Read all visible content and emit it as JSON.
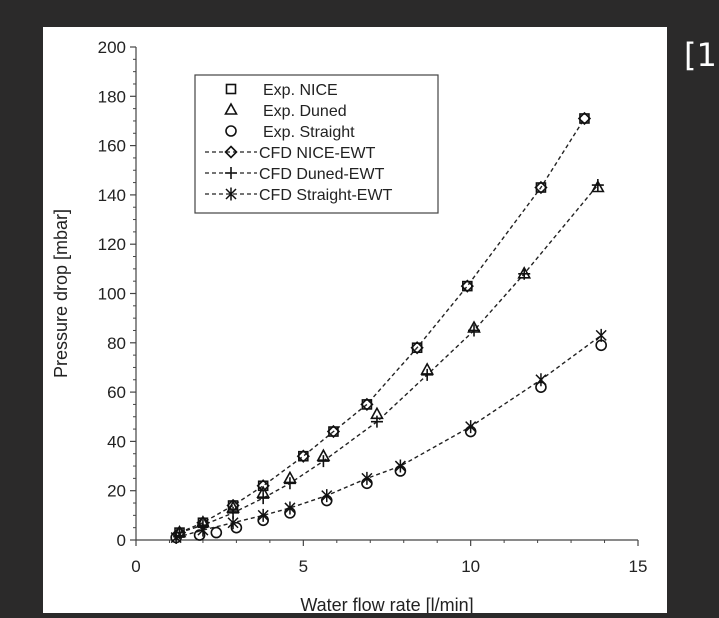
{
  "page": {
    "corner_text": "[1"
  },
  "chart_data": {
    "type": "scatter",
    "title": "",
    "xlabel": "Water flow rate [l/min]",
    "ylabel": "Pressure drop [mbar]",
    "xlim": [
      0,
      15
    ],
    "ylim": [
      0,
      200
    ],
    "xticks": [
      0,
      5,
      10,
      15
    ],
    "yticks": [
      0,
      20,
      40,
      60,
      80,
      100,
      120,
      140,
      160,
      180,
      200
    ],
    "grid": false,
    "legend_position": "top-left",
    "series": [
      {
        "name": "Exp. NICE",
        "marker": "square",
        "line": false,
        "x": [
          1.3,
          2.0,
          2.9,
          3.8,
          5.0,
          5.9,
          6.9,
          8.4,
          9.9,
          12.1,
          13.4
        ],
        "y": [
          3,
          7,
          14,
          22,
          34,
          44,
          55,
          78,
          103,
          143,
          171
        ]
      },
      {
        "name": "Exp. Duned",
        "marker": "triangle",
        "line": false,
        "x": [
          1.3,
          2.0,
          2.9,
          3.8,
          4.6,
          5.6,
          7.2,
          8.7,
          10.1,
          11.6,
          13.8
        ],
        "y": [
          3,
          7,
          13,
          19,
          25,
          34,
          51,
          69,
          86,
          108,
          143
        ]
      },
      {
        "name": "Exp. Straight",
        "marker": "circle",
        "line": false,
        "x": [
          1.2,
          1.9,
          2.4,
          3.0,
          3.8,
          4.6,
          5.7,
          6.9,
          7.9,
          10.0,
          12.1,
          13.9
        ],
        "y": [
          1,
          2,
          3,
          5,
          8,
          11,
          16,
          23,
          28,
          44,
          62,
          79
        ]
      },
      {
        "name": "CFD NICE-EWT",
        "marker": "diamond",
        "line": true,
        "x": [
          1.3,
          2.0,
          2.9,
          3.8,
          5.0,
          5.9,
          6.9,
          8.4,
          9.9,
          12.1,
          13.4
        ],
        "y": [
          3,
          7,
          14,
          22,
          34,
          44,
          55,
          78,
          103,
          143,
          171
        ]
      },
      {
        "name": "CFD Duned-EWT",
        "marker": "plus",
        "line": true,
        "x": [
          1.3,
          2.0,
          2.9,
          3.8,
          4.6,
          5.6,
          7.2,
          8.7,
          10.1,
          11.6,
          13.8
        ],
        "y": [
          3,
          6,
          11,
          17,
          23,
          32,
          48,
          67,
          85,
          108,
          144
        ]
      },
      {
        "name": "CFD Straight-EWT",
        "marker": "star",
        "line": true,
        "x": [
          1.2,
          2.0,
          2.9,
          3.8,
          4.6,
          5.7,
          6.9,
          7.9,
          10.0,
          12.1,
          13.9
        ],
        "y": [
          1,
          4,
          7,
          10,
          13,
          18,
          25,
          30,
          46,
          65,
          83
        ]
      }
    ]
  }
}
